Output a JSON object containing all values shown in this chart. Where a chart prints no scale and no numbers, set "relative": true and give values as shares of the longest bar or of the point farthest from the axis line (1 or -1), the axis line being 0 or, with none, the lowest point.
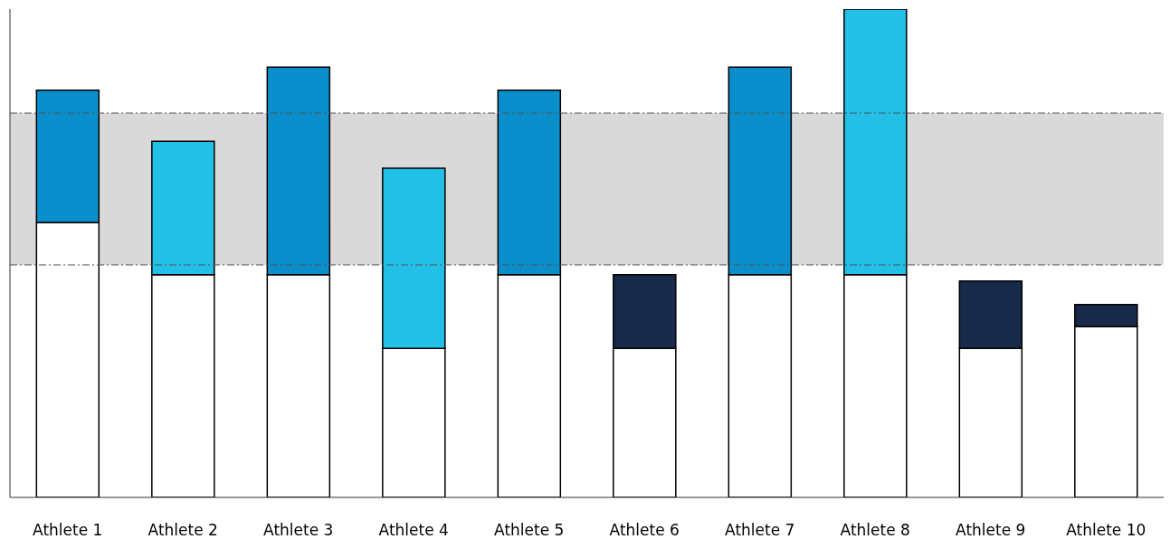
{
  "chart_data": {
    "type": "bar",
    "stacked": true,
    "relative": true,
    "categories": [
      "Athlete 1",
      "Athlete 2",
      "Athlete 3",
      "Athlete 4",
      "Athlete 5",
      "Athlete 6",
      "Athlete 7",
      "Athlete 8",
      "Athlete 9",
      "Athlete 10"
    ],
    "series": [
      {
        "color": "#ffffff",
        "values": [
          0.563,
          0.456,
          0.456,
          0.305,
          0.456,
          0.305,
          0.456,
          0.456,
          0.305,
          0.35
        ]
      },
      {
        "colors": [
          "#0a8fcc",
          "#22bfe6",
          "#0a8fcc",
          "#22bfe6",
          "#0a8fcc",
          "#172a4a",
          "#0a8fcc",
          "#22bfe6",
          "#172a4a",
          "#172a4a"
        ],
        "values": [
          0.271,
          0.273,
          0.425,
          0.369,
          0.378,
          0.151,
          0.425,
          0.544,
          0.138,
          0.045
        ]
      }
    ],
    "bands": [
      {
        "axis": "y",
        "from": 0.476,
        "to": 0.787,
        "color": "#d9d9d9"
      }
    ],
    "ref_lines": [
      {
        "axis": "y",
        "value": 0.476,
        "color": "#555555",
        "line_style": "dashed"
      },
      {
        "axis": "y",
        "value": 0.787,
        "color": "#555555",
        "line_style": "dashed"
      }
    ],
    "grid": false,
    "legend": false
  }
}
